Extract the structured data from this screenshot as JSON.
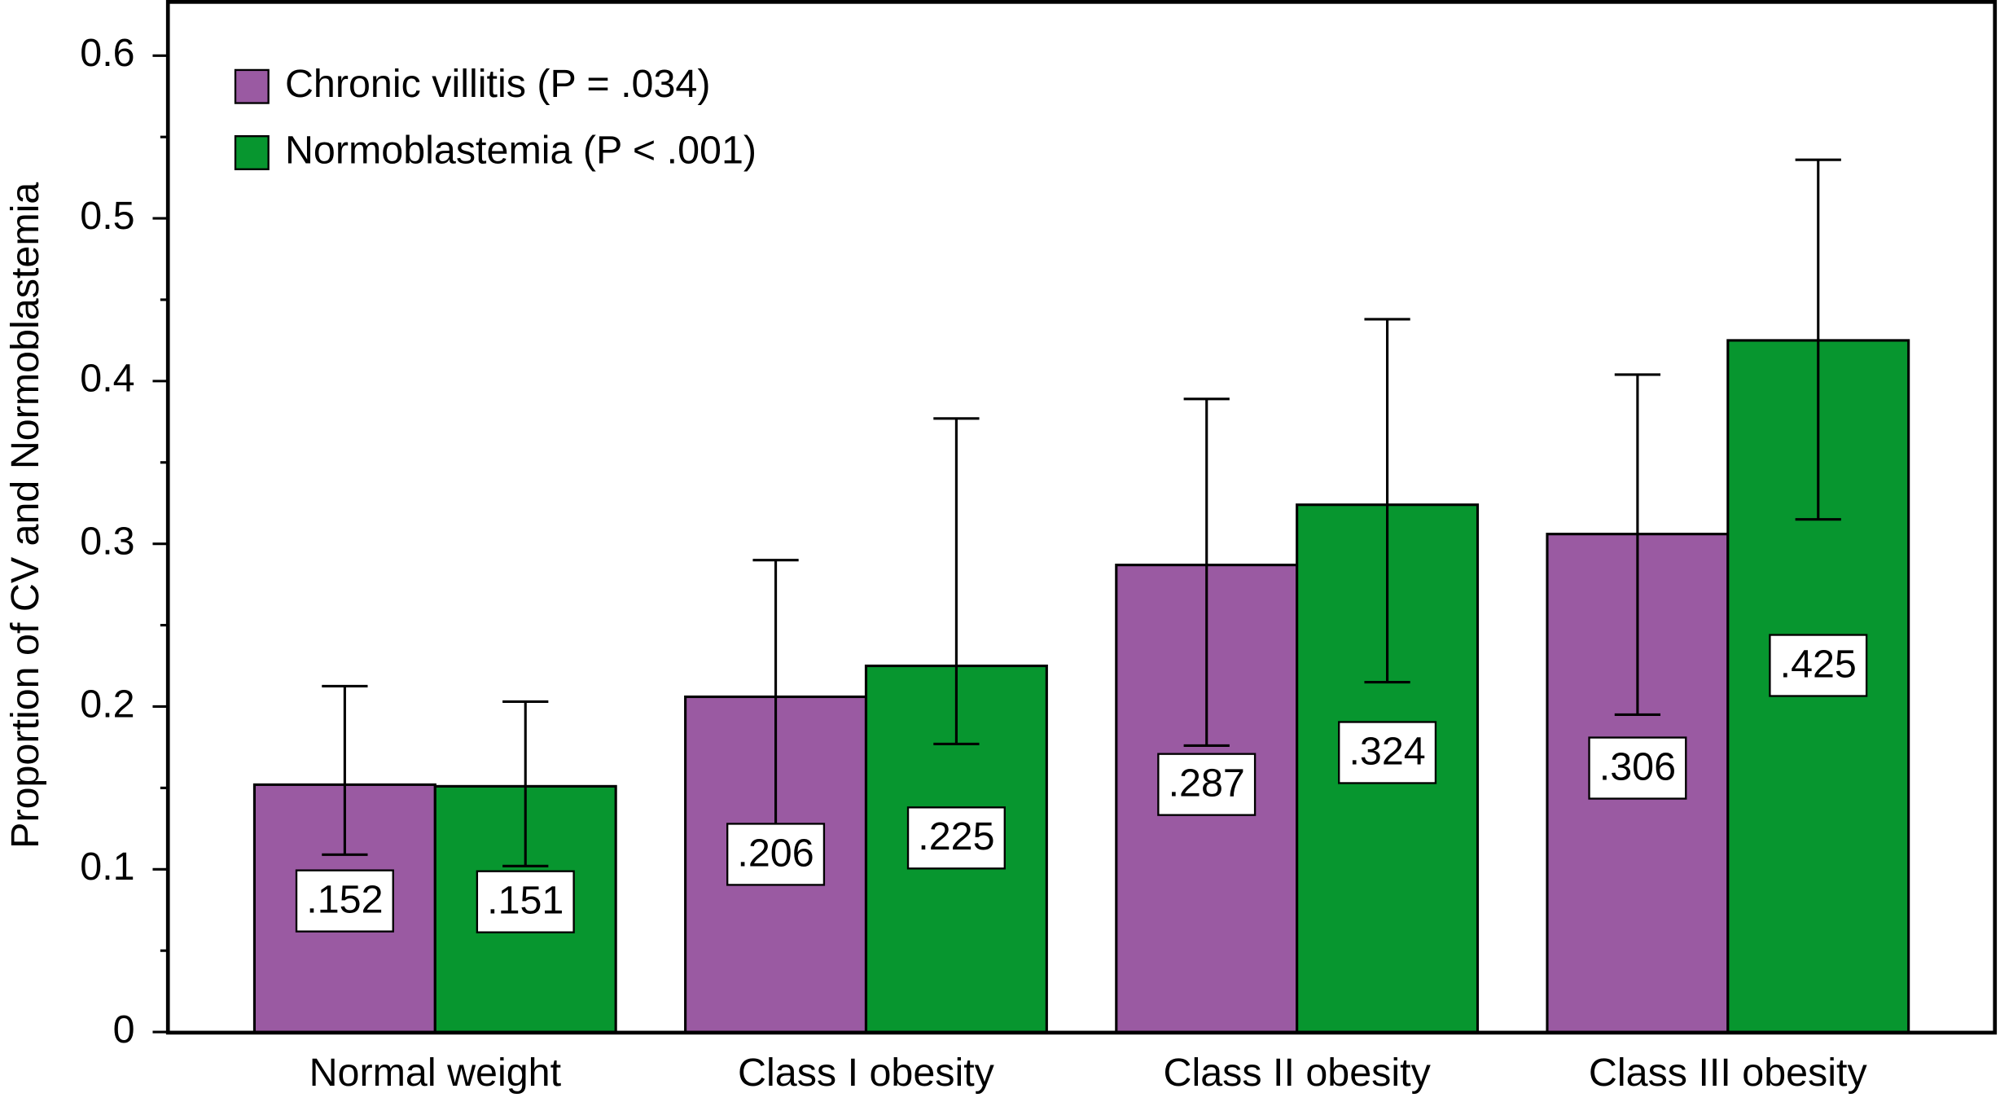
{
  "chart_data": {
    "type": "bar",
    "y_label": "Proportion of CV and Normoblastemia",
    "categories": [
      "Normal weight",
      "Class I obesity",
      "Class II obesity",
      "Class III obesity"
    ],
    "series": [
      {
        "name": "Chronic villitis (P = .034)",
        "color": "#9a5aa2",
        "values": [
          0.152,
          0.206,
          0.287,
          0.306
        ],
        "value_labels": [
          ".152",
          ".206",
          ".287",
          ".306"
        ],
        "err_high": [
          0.2125,
          0.29,
          0.389,
          0.404
        ],
        "err_low": [
          0.109,
          0.115,
          0.176,
          0.195
        ]
      },
      {
        "name": "Normoblastemia (P < .001)",
        "color": "#07962f",
        "values": [
          0.151,
          0.225,
          0.324,
          0.425
        ],
        "value_labels": [
          ".151",
          ".225",
          ".324",
          ".425"
        ],
        "err_high": [
          0.203,
          0.377,
          0.438,
          0.536
        ],
        "err_low": [
          0.102,
          0.177,
          0.215,
          0.315
        ]
      }
    ],
    "ylim": [
      0,
      0.633
    ],
    "yticks": [
      0,
      0.1,
      0.2,
      0.3,
      0.4,
      0.5,
      0.6
    ],
    "yminor": [
      0.05,
      0.15,
      0.25,
      0.35,
      0.45,
      0.55
    ],
    "legend": "upper left"
  }
}
